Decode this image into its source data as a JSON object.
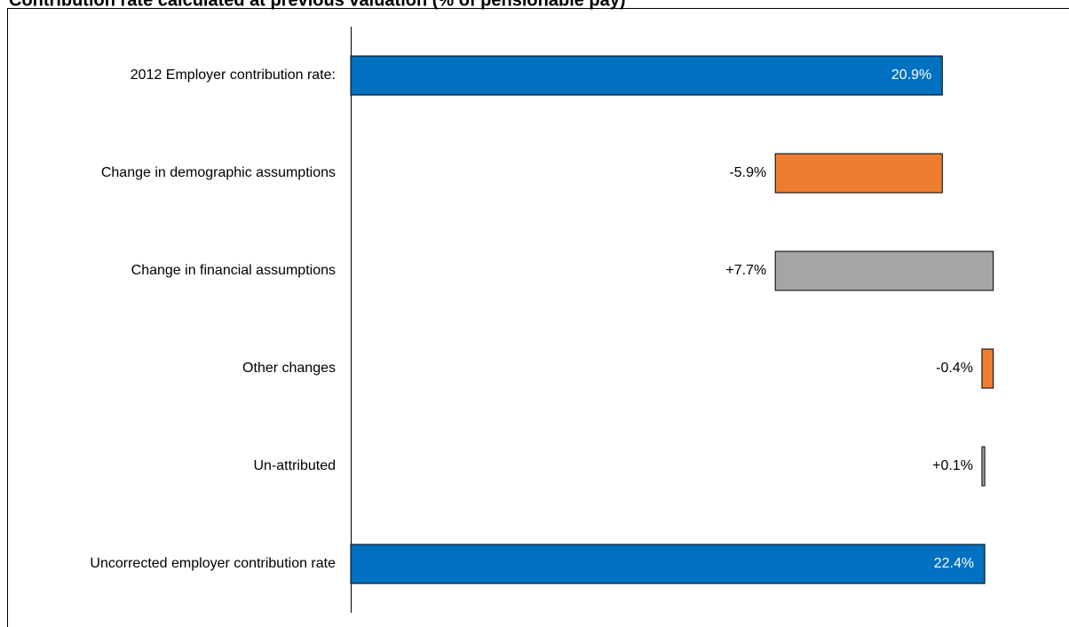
{
  "chart_data": {
    "type": "waterfall",
    "title": "Contribution rate calculated at previous valuation (% of pensionable pay)",
    "orientation": "horizontal",
    "categories": [
      "2012 Employer contribution rate:",
      "Change in demographic assumptions",
      "Change in financial assumptions",
      "Other changes",
      "Un-attributed",
      "Uncorrected employer contribution rate"
    ],
    "values": [
      20.9,
      -5.9,
      7.7,
      -0.4,
      0.1,
      22.4
    ],
    "value_labels": [
      "20.9%",
      "-5.9%",
      "+7.7%",
      "-0.4%",
      "+0.1%",
      "22.4%"
    ],
    "measure": [
      "absolute",
      "relative",
      "relative",
      "relative",
      "relative",
      "absolute"
    ],
    "colors": [
      "#0070c0",
      "#ed7d31",
      "#a5a5a5",
      "#ed7d31",
      "#a5a5a5",
      "#0070c0"
    ],
    "xlim": [
      0,
      25
    ]
  }
}
